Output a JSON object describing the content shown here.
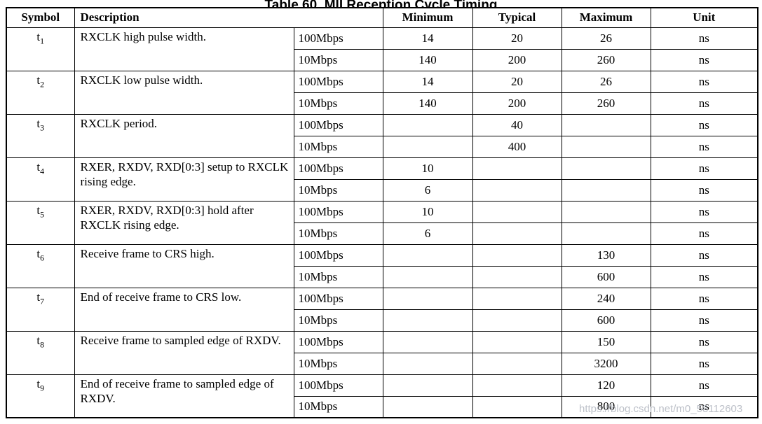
{
  "page": {
    "title_partial": "Table 60. MII Reception Cycle Timing",
    "watermark": "https://blog.csdn.net/m0_58112603"
  },
  "table": {
    "headers": {
      "symbol": "Symbol",
      "description": "Description",
      "minimum": "Minimum",
      "typical": "Typical",
      "maximum": "Maximum",
      "unit": "Unit"
    },
    "rows": [
      {
        "symbol_base": "t",
        "symbol_sub": "1",
        "description": "RXCLK high pulse width.",
        "entries": [
          {
            "speed": "100Mbps",
            "min": "14",
            "typ": "20",
            "max": "26",
            "unit": "ns"
          },
          {
            "speed": "10Mbps",
            "min": "140",
            "typ": "200",
            "max": "260",
            "unit": "ns"
          }
        ]
      },
      {
        "symbol_base": "t",
        "symbol_sub": "2",
        "description": "RXCLK low pulse width.",
        "entries": [
          {
            "speed": "100Mbps",
            "min": "14",
            "typ": "20",
            "max": "26",
            "unit": "ns"
          },
          {
            "speed": "10Mbps",
            "min": "140",
            "typ": "200",
            "max": "260",
            "unit": "ns"
          }
        ]
      },
      {
        "symbol_base": "t",
        "symbol_sub": "3",
        "description": "RXCLK period.",
        "entries": [
          {
            "speed": "100Mbps",
            "min": "",
            "typ": "40",
            "max": "",
            "unit": "ns"
          },
          {
            "speed": "10Mbps",
            "min": "",
            "typ": "400",
            "max": "",
            "unit": "ns"
          }
        ]
      },
      {
        "symbol_base": "t",
        "symbol_sub": "4",
        "description": "RXER, RXDV, RXD[0:3] setup to RXCLK rising edge.",
        "entries": [
          {
            "speed": "100Mbps",
            "min": "10",
            "typ": "",
            "max": "",
            "unit": "ns"
          },
          {
            "speed": "10Mbps",
            "min": "6",
            "typ": "",
            "max": "",
            "unit": "ns"
          }
        ]
      },
      {
        "symbol_base": "t",
        "symbol_sub": "5",
        "description": "RXER, RXDV, RXD[0:3] hold after RXCLK rising edge.",
        "entries": [
          {
            "speed": "100Mbps",
            "min": "10",
            "typ": "",
            "max": "",
            "unit": "ns"
          },
          {
            "speed": "10Mbps",
            "min": "6",
            "typ": "",
            "max": "",
            "unit": "ns"
          }
        ]
      },
      {
        "symbol_base": "t",
        "symbol_sub": "6",
        "description": "Receive frame to CRS high.",
        "entries": [
          {
            "speed": "100Mbps",
            "min": "",
            "typ": "",
            "max": "130",
            "unit": "ns"
          },
          {
            "speed": "10Mbps",
            "min": "",
            "typ": "",
            "max": "600",
            "unit": "ns"
          }
        ]
      },
      {
        "symbol_base": "t",
        "symbol_sub": "7",
        "description": "End of receive frame to CRS low.",
        "entries": [
          {
            "speed": "100Mbps",
            "min": "",
            "typ": "",
            "max": "240",
            "unit": "ns"
          },
          {
            "speed": "10Mbps",
            "min": "",
            "typ": "",
            "max": "600",
            "unit": "ns"
          }
        ]
      },
      {
        "symbol_base": "t",
        "symbol_sub": "8",
        "description": "Receive frame to sampled edge of RXDV.",
        "entries": [
          {
            "speed": "100Mbps",
            "min": "",
            "typ": "",
            "max": "150",
            "unit": "ns"
          },
          {
            "speed": "10Mbps",
            "min": "",
            "typ": "",
            "max": "3200",
            "unit": "ns"
          }
        ]
      },
      {
        "symbol_base": "t",
        "symbol_sub": "9",
        "description": "End of receive frame to sampled edge of RXDV.",
        "entries": [
          {
            "speed": "100Mbps",
            "min": "",
            "typ": "",
            "max": "120",
            "unit": "ns"
          },
          {
            "speed": "10Mbps",
            "min": "",
            "typ": "",
            "max": "800",
            "unit": "ns"
          }
        ]
      }
    ]
  }
}
